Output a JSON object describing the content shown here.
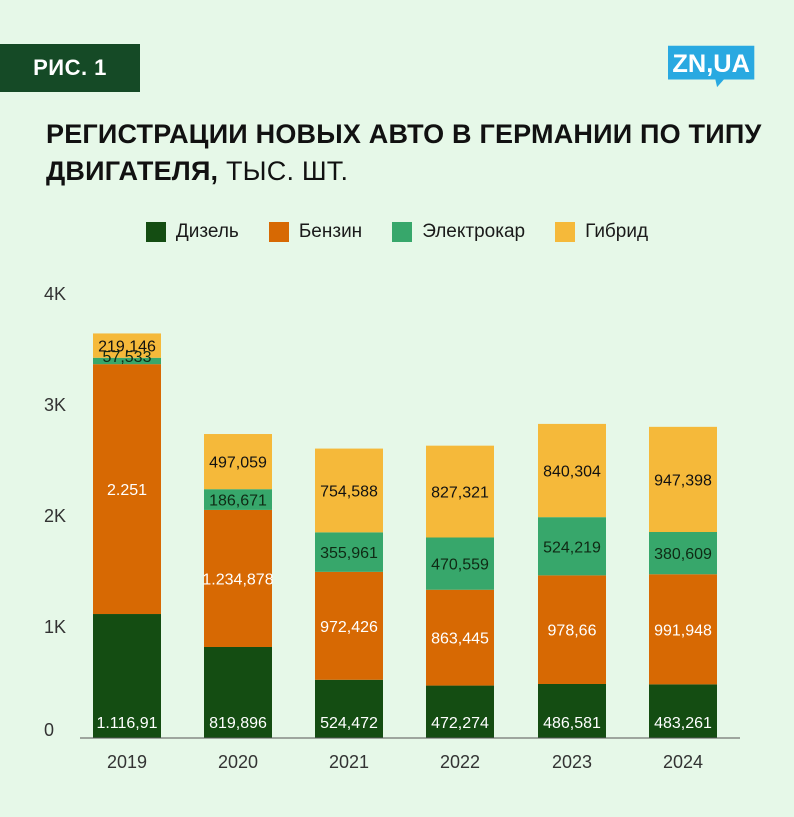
{
  "figure_label": "РИС. 1",
  "logo": {
    "text": "ZN,UA",
    "color": "#29a9e1"
  },
  "title": {
    "main": "РЕГИСТРАЦИИ НОВЫХ АВТО В ГЕРМАНИИ ПО ТИПУ ДВИГАТЕЛЯ,",
    "unit": " ТЫС. ШТ."
  },
  "colors": {
    "background": "#e6f8e8",
    "label_bg": "#154a26",
    "axis": "#333333"
  },
  "chart_data": {
    "type": "bar",
    "stacked": true,
    "categories": [
      "2019",
      "2020",
      "2021",
      "2022",
      "2023",
      "2024"
    ],
    "ylim": [
      0,
      4000
    ],
    "yticks": [
      {
        "value": 0,
        "label": "0"
      },
      {
        "value": 1000,
        "label": "1K"
      },
      {
        "value": 2000,
        "label": "2K"
      },
      {
        "value": 3000,
        "label": "3K"
      },
      {
        "value": 4000,
        "label": "4K"
      }
    ],
    "grid": false,
    "legend_position": "top-center",
    "series": [
      {
        "name": "Дизель",
        "color": "#144d12",
        "label_color": "#ffffff",
        "values": [
          1116.91,
          819.896,
          524.472,
          472.274,
          486.581,
          483.261
        ],
        "labels": [
          "1.116,91",
          "819,896",
          "524,472",
          "472,274",
          "486,581",
          "483,261"
        ]
      },
      {
        "name": "Бензин",
        "color": "#d76903",
        "label_color": "#ffffff",
        "values": [
          2251,
          1234.878,
          972.426,
          863.445,
          978.66,
          991.948
        ],
        "labels": [
          "2.251",
          "1.234,878",
          "972,426",
          "863,445",
          "978,66",
          "991,948"
        ]
      },
      {
        "name": "Электрокар",
        "color": "#37a76b",
        "label_color": "#0f2a14",
        "values": [
          57.533,
          186.671,
          355.961,
          470.559,
          524.219,
          380.609
        ],
        "labels": [
          "57,533",
          "186,671",
          "355,961",
          "470,559",
          "524,219",
          "380,609"
        ]
      },
      {
        "name": "Гибрид",
        "color": "#f5b93a",
        "label_color": "#111111",
        "values": [
          219.146,
          497.059,
          754.588,
          827.321,
          840.304,
          947.398
        ],
        "labels": [
          "219,146",
          "497,059",
          "754,588",
          "827,321",
          "840,304",
          "947,398"
        ]
      }
    ]
  }
}
